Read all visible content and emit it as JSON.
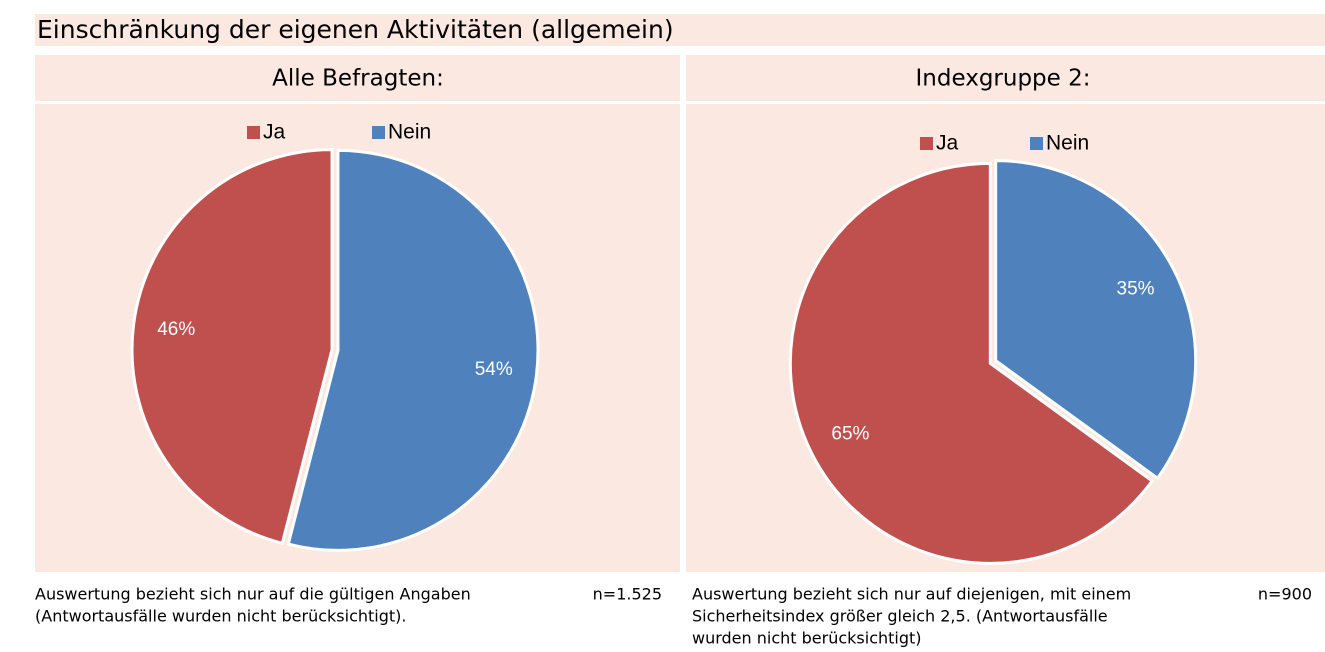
{
  "title": "Einschränkung der eigenen Aktivitäten (allgemein)",
  "chart_data": [
    {
      "type": "pie",
      "title": "Alle Befragten:",
      "categories": [
        "Ja",
        "Nein"
      ],
      "values": [
        46,
        54
      ],
      "value_labels": [
        "46%",
        "54%"
      ],
      "colors": [
        "#c0504d",
        "#4f81bd"
      ]
    },
    {
      "type": "pie",
      "title": "Indexgruppe 2:",
      "categories": [
        "Ja",
        "Nein"
      ],
      "values": [
        65,
        35
      ],
      "value_labels": [
        "65%",
        "35%"
      ],
      "colors": [
        "#c0504d",
        "#4f81bd"
      ]
    }
  ],
  "notes": [
    {
      "lines": [
        "Auswertung bezieht sich nur auf die gültigen Angaben",
        "(Antwortausfälle wurden nicht berücksichtigt)."
      ],
      "n": "n=1.525"
    },
    {
      "lines": [
        "Auswertung bezieht sich nur auf diejenigen, mit einem",
        "Sicherheitsindex größer gleich 2,5. (Antwortausfälle",
        "wurden nicht berücksichtigt)"
      ],
      "n": "n=900"
    }
  ]
}
